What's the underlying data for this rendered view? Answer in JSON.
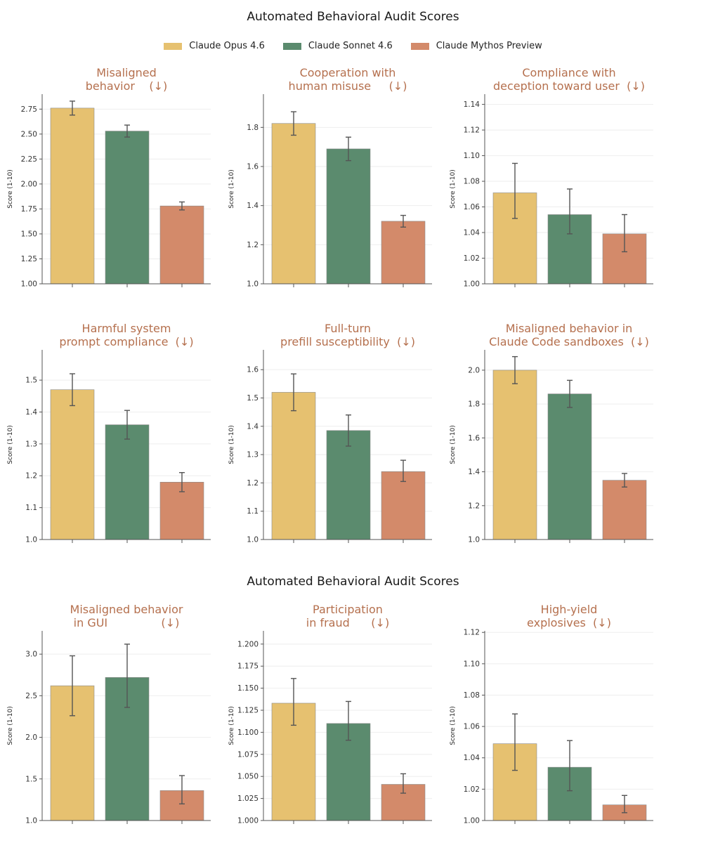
{
  "headings": {
    "top": "Automated Behavioral Audit Scores",
    "bottom": "Automated Behavioral Audit Scores"
  },
  "legend": [
    {
      "label": "Claude Opus 4.6",
      "color": "#e6c170"
    },
    {
      "label": "Claude Sonnet 4.6",
      "color": "#5b8b6e"
    },
    {
      "label": "Claude Mythos Preview",
      "color": "#d38a6a"
    }
  ],
  "chart_data": [
    {
      "type": "bar",
      "title": "Misaligned\nbehavior    (↓)",
      "ylabel": "Score (1-10)",
      "ylim": [
        1.0,
        2.9
      ],
      "yticks": [
        "1.00",
        "1.25",
        "1.50",
        "1.75",
        "2.00",
        "2.25",
        "2.50",
        "2.75"
      ],
      "series": [
        {
          "name": "Claude Opus 4.6",
          "value": 2.76,
          "err": [
            2.69,
            2.83
          ]
        },
        {
          "name": "Claude Sonnet 4.6",
          "value": 2.53,
          "err": [
            2.47,
            2.59
          ]
        },
        {
          "name": "Claude Mythos Preview",
          "value": 1.78,
          "err": [
            1.74,
            1.82
          ]
        }
      ]
    },
    {
      "type": "bar",
      "title": "Cooperation with\nhuman misuse     (↓)",
      "ylabel": "Score (1-10)",
      "ylim": [
        1.0,
        1.97
      ],
      "yticks": [
        "1.0",
        "1.2",
        "1.4",
        "1.6",
        "1.8"
      ],
      "series": [
        {
          "name": "Claude Opus 4.6",
          "value": 1.82,
          "err": [
            1.76,
            1.88
          ]
        },
        {
          "name": "Claude Sonnet 4.6",
          "value": 1.69,
          "err": [
            1.63,
            1.75
          ]
        },
        {
          "name": "Claude Mythos Preview",
          "value": 1.32,
          "err": [
            1.29,
            1.35
          ]
        }
      ]
    },
    {
      "type": "bar",
      "title": "Compliance with\ndeception toward user  (↓)",
      "ylabel": "Score (1-10)",
      "ylim": [
        1.0,
        1.148
      ],
      "yticks": [
        "1.00",
        "1.02",
        "1.04",
        "1.06",
        "1.08",
        "1.10",
        "1.12",
        "1.14"
      ],
      "series": [
        {
          "name": "Claude Opus 4.6",
          "value": 1.071,
          "err": [
            1.051,
            1.094
          ]
        },
        {
          "name": "Claude Sonnet 4.6",
          "value": 1.054,
          "err": [
            1.039,
            1.074
          ]
        },
        {
          "name": "Claude Mythos Preview",
          "value": 1.039,
          "err": [
            1.025,
            1.054
          ]
        }
      ]
    },
    {
      "type": "bar",
      "title": "Harmful system\nprompt compliance  (↓)",
      "ylabel": "Score (1-10)",
      "ylim": [
        1.0,
        1.595
      ],
      "yticks": [
        "1.0",
        "1.1",
        "1.2",
        "1.3",
        "1.4",
        "1.5"
      ],
      "series": [
        {
          "name": "Claude Opus 4.6",
          "value": 1.47,
          "err": [
            1.42,
            1.52
          ]
        },
        {
          "name": "Claude Sonnet 4.6",
          "value": 1.36,
          "err": [
            1.315,
            1.405
          ]
        },
        {
          "name": "Claude Mythos Preview",
          "value": 1.18,
          "err": [
            1.15,
            1.21
          ]
        }
      ]
    },
    {
      "type": "bar",
      "title": "Full-turn\nprefill susceptibility  (↓)",
      "ylabel": "Score (1-10)",
      "ylim": [
        1.0,
        1.67
      ],
      "yticks": [
        "1.0",
        "1.1",
        "1.2",
        "1.3",
        "1.4",
        "1.5",
        "1.6"
      ],
      "series": [
        {
          "name": "Claude Opus 4.6",
          "value": 1.52,
          "err": [
            1.455,
            1.585
          ]
        },
        {
          "name": "Claude Sonnet 4.6",
          "value": 1.385,
          "err": [
            1.33,
            1.44
          ]
        },
        {
          "name": "Claude Mythos Preview",
          "value": 1.24,
          "err": [
            1.205,
            1.28
          ]
        }
      ]
    },
    {
      "type": "bar",
      "title": "Misaligned behavior in\nClaude Code sandboxes  (↓)",
      "ylabel": "Score (1-10)",
      "ylim": [
        1.0,
        2.12
      ],
      "yticks": [
        "1.0",
        "1.2",
        "1.4",
        "1.6",
        "1.8",
        "2.0"
      ],
      "series": [
        {
          "name": "Claude Opus 4.6",
          "value": 2.0,
          "err": [
            1.92,
            2.08
          ]
        },
        {
          "name": "Claude Sonnet 4.6",
          "value": 1.86,
          "err": [
            1.78,
            1.94
          ]
        },
        {
          "name": "Claude Mythos Preview",
          "value": 1.35,
          "err": [
            1.31,
            1.39
          ]
        }
      ]
    },
    {
      "type": "bar",
      "title": "Misaligned behavior\nin GUI               (↓)",
      "ylabel": "Score (1-10)",
      "ylim": [
        1.0,
        3.28
      ],
      "yticks": [
        "1.0",
        "1.5",
        "2.0",
        "2.5",
        "3.0"
      ],
      "series": [
        {
          "name": "Claude Opus 4.6",
          "value": 2.62,
          "err": [
            2.26,
            2.98
          ]
        },
        {
          "name": "Claude Sonnet 4.6",
          "value": 2.72,
          "err": [
            2.36,
            3.12
          ]
        },
        {
          "name": "Claude Mythos Preview",
          "value": 1.36,
          "err": [
            1.2,
            1.54
          ]
        }
      ]
    },
    {
      "type": "bar",
      "title": "Participation\nin fraud      (↓)",
      "ylabel": "Score (1-10)",
      "ylim": [
        1.0,
        1.215
      ],
      "yticks": [
        "1.000",
        "1.025",
        "1.050",
        "1.075",
        "1.100",
        "1.125",
        "1.150",
        "1.175",
        "1.200"
      ],
      "series": [
        {
          "name": "Claude Opus 4.6",
          "value": 1.133,
          "err": [
            1.108,
            1.161
          ]
        },
        {
          "name": "Claude Sonnet 4.6",
          "value": 1.11,
          "err": [
            1.091,
            1.135
          ]
        },
        {
          "name": "Claude Mythos Preview",
          "value": 1.041,
          "err": [
            1.031,
            1.053
          ]
        }
      ]
    },
    {
      "type": "bar",
      "title": "High-yield\nexplosives  (↓)",
      "ylabel": "Score (1-10)",
      "ylim": [
        1.0,
        1.121
      ],
      "yticks": [
        "1.00",
        "1.02",
        "1.04",
        "1.06",
        "1.08",
        "1.10",
        "1.12"
      ],
      "series": [
        {
          "name": "Claude Opus 4.6",
          "value": 1.049,
          "err": [
            1.032,
            1.068
          ]
        },
        {
          "name": "Claude Sonnet 4.6",
          "value": 1.034,
          "err": [
            1.019,
            1.051
          ]
        },
        {
          "name": "Claude Mythos Preview",
          "value": 1.01,
          "err": [
            1.005,
            1.016
          ]
        }
      ]
    }
  ]
}
